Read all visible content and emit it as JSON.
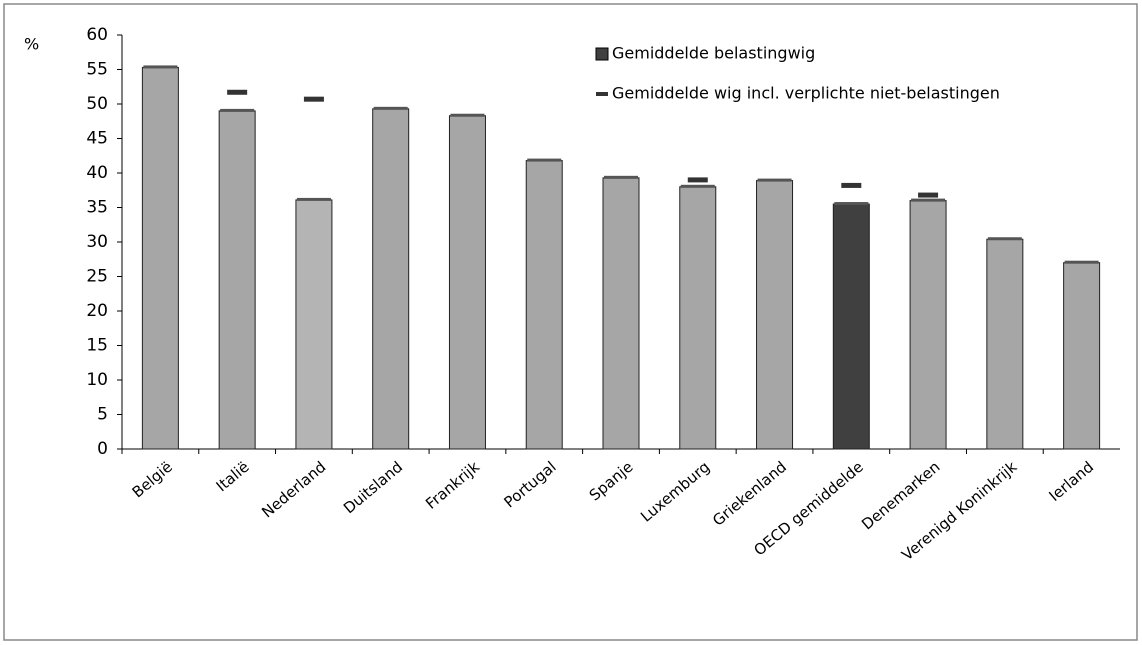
{
  "chart_data": {
    "type": "bar",
    "y_label": "%",
    "categories": [
      "België",
      "Italië",
      "Nederland",
      "Duitsland",
      "Frankrijk",
      "Portugal",
      "Spanje",
      "Luxemburg",
      "Griekenland",
      "OECD gemiddelde",
      "Denemarken",
      "Verenigd Koninkrijk",
      "Ierland"
    ],
    "series": [
      {
        "name": "Gemiddelde belastingwig",
        "color": "#404040",
        "colors": [
          "#a6a6a6",
          "#a6a6a6",
          "#b4b4b4",
          "#a6a6a6",
          "#a6a6a6",
          "#a6a6a6",
          "#a6a6a6",
          "#a6a6a6",
          "#a6a6a6",
          "#404040",
          "#a6a6a6",
          "#a6a6a6",
          "#a6a6a6"
        ],
        "values": [
          55.3,
          49,
          36.1,
          49.3,
          48.3,
          41.8,
          39.3,
          38,
          38.9,
          35.5,
          36,
          30.4,
          27
        ]
      },
      {
        "name": "Gemiddelde wig incl. verplichte niet-belastingen",
        "color": "#333333",
        "values": [
          null,
          51.7,
          50.7,
          null,
          null,
          null,
          null,
          39,
          null,
          38.2,
          36.8,
          null,
          null
        ]
      }
    ],
    "ylim": [
      0,
      60
    ],
    "yticks": [
      0,
      5,
      10,
      15,
      20,
      25,
      30,
      35,
      40,
      45,
      50,
      55,
      60
    ]
  }
}
